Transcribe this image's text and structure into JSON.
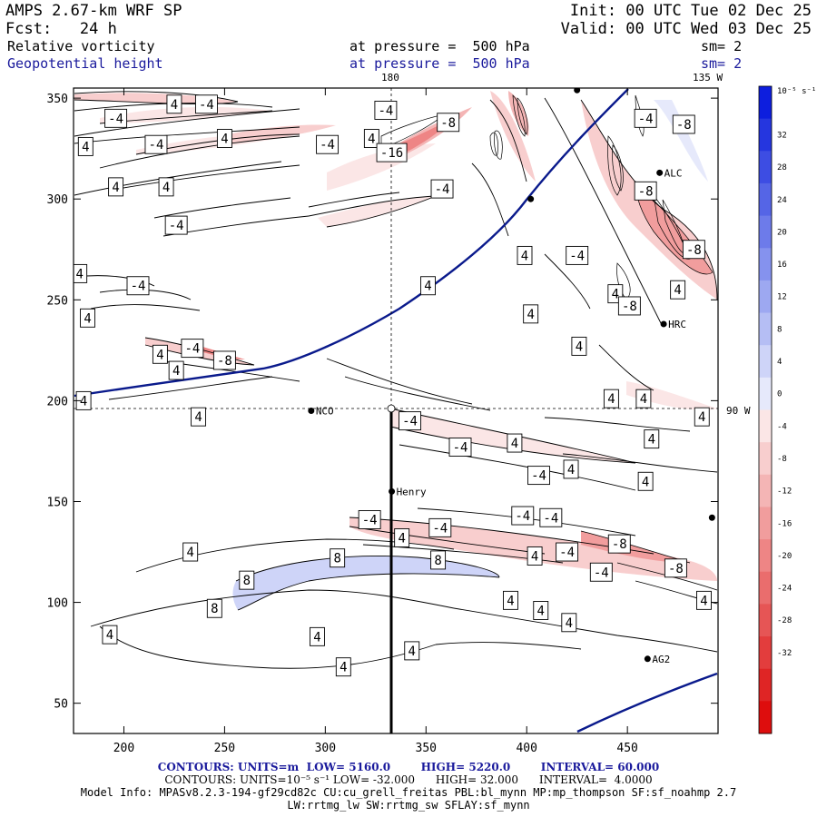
{
  "header": {
    "model": "AMPS 2.67-km WRF SP",
    "forecast_label": "Fcst:",
    "forecast_hours": "24 h",
    "init": "Init: 00 UTC Tue 02 Dec 25",
    "valid": "Valid: 00 UTC Wed 03 Dec 25",
    "field1": "Relative vorticity",
    "field2": "Geopotential height",
    "pressure1": "at pressure =  500 hPa",
    "pressure2": "at pressure =  500 hPa",
    "sm1": "sm= 2",
    "sm2": "sm= 2",
    "lon_top1": "180",
    "lon_top2": "135 W",
    "lon_right": "90 W"
  },
  "axes": {
    "x_ticks": [
      200,
      250,
      300,
      350,
      400,
      450
    ],
    "y_ticks": [
      50,
      100,
      150,
      200,
      250,
      300,
      350
    ],
    "xlim": [
      175,
      495
    ],
    "ylim": [
      35,
      355
    ]
  },
  "stations": [
    {
      "name": "NCO",
      "x": 293,
      "y": 195
    },
    {
      "name": "Henry",
      "x": 333,
      "y": 155
    },
    {
      "name": "HRC",
      "x": 468,
      "y": 238
    },
    {
      "name": "ALC",
      "x": 466,
      "y": 313
    },
    {
      "name": "AG2",
      "x": 460,
      "y": 72
    },
    {
      "name": "",
      "x": 402,
      "y": 300
    },
    {
      "name": "",
      "x": 492,
      "y": 142
    },
    {
      "name": "",
      "x": 425,
      "y": 354
    }
  ],
  "contour_labels": [
    {
      "text": "-4",
      "x": 196,
      "y": 340
    },
    {
      "text": "4",
      "x": 225,
      "y": 347
    },
    {
      "text": "-4",
      "x": 241,
      "y": 347
    },
    {
      "text": "4",
      "x": 181,
      "y": 326
    },
    {
      "text": "-4",
      "x": 216,
      "y": 327
    },
    {
      "text": "4",
      "x": 250,
      "y": 330
    },
    {
      "text": "4",
      "x": 196,
      "y": 306
    },
    {
      "text": "4",
      "x": 221,
      "y": 306
    },
    {
      "text": "-4",
      "x": 226,
      "y": 287
    },
    {
      "text": "-4",
      "x": 301,
      "y": 327
    },
    {
      "text": "4",
      "x": 323,
      "y": 330
    },
    {
      "text": "-4",
      "x": 330,
      "y": 344
    },
    {
      "text": "-8",
      "x": 361,
      "y": 338
    },
    {
      "text": "-16",
      "x": 333,
      "y": 323
    },
    {
      "text": "-4",
      "x": 358,
      "y": 305
    },
    {
      "text": "4",
      "x": 178,
      "y": 263
    },
    {
      "text": "-4",
      "x": 207,
      "y": 257
    },
    {
      "text": "4",
      "x": 182,
      "y": 241
    },
    {
      "text": "-4",
      "x": 234,
      "y": 226
    },
    {
      "text": "-8",
      "x": 250,
      "y": 220
    },
    {
      "text": "4",
      "x": 218,
      "y": 223
    },
    {
      "text": "4",
      "x": 226,
      "y": 215
    },
    {
      "text": "4",
      "x": 180,
      "y": 200
    },
    {
      "text": "4",
      "x": 237,
      "y": 192
    },
    {
      "text": "4",
      "x": 351,
      "y": 257
    },
    {
      "text": "4",
      "x": 399,
      "y": 272
    },
    {
      "text": "-4",
      "x": 425,
      "y": 272
    },
    {
      "text": "4",
      "x": 402,
      "y": 243
    },
    {
      "text": "4",
      "x": 444,
      "y": 253
    },
    {
      "text": "-8",
      "x": 451,
      "y": 247
    },
    {
      "text": "4",
      "x": 475,
      "y": 255
    },
    {
      "text": "-8",
      "x": 483,
      "y": 275
    },
    {
      "text": "-4",
      "x": 459,
      "y": 340
    },
    {
      "text": "-8",
      "x": 478,
      "y": 337
    },
    {
      "text": "-8",
      "x": 459,
      "y": 304
    },
    {
      "text": "4",
      "x": 426,
      "y": 227
    },
    {
      "text": "4",
      "x": 442,
      "y": 201
    },
    {
      "text": "4",
      "x": 458,
      "y": 201
    },
    {
      "text": "4",
      "x": 487,
      "y": 192
    },
    {
      "text": "-4",
      "x": 342,
      "y": 190
    },
    {
      "text": "-4",
      "x": 367,
      "y": 177
    },
    {
      "text": "4",
      "x": 394,
      "y": 179
    },
    {
      "text": "-4",
      "x": 406,
      "y": 163
    },
    {
      "text": "4",
      "x": 422,
      "y": 166
    },
    {
      "text": "4",
      "x": 462,
      "y": 181
    },
    {
      "text": "4",
      "x": 459,
      "y": 160
    },
    {
      "text": "-4",
      "x": 322,
      "y": 141
    },
    {
      "text": "-4",
      "x": 357,
      "y": 137
    },
    {
      "text": "4",
      "x": 338,
      "y": 132
    },
    {
      "text": "-4",
      "x": 398,
      "y": 143
    },
    {
      "text": "-4",
      "x": 412,
      "y": 142
    },
    {
      "text": "4",
      "x": 404,
      "y": 123
    },
    {
      "text": "-4",
      "x": 420,
      "y": 125
    },
    {
      "text": "-8",
      "x": 446,
      "y": 129
    },
    {
      "text": "-4",
      "x": 437,
      "y": 115
    },
    {
      "text": "-8",
      "x": 474,
      "y": 117
    },
    {
      "text": "4",
      "x": 488,
      "y": 101
    },
    {
      "text": "4",
      "x": 233,
      "y": 125
    },
    {
      "text": "8",
      "x": 306,
      "y": 122
    },
    {
      "text": "8",
      "x": 356,
      "y": 121
    },
    {
      "text": "8",
      "x": 261,
      "y": 111
    },
    {
      "text": "8",
      "x": 245,
      "y": 97
    },
    {
      "text": "4",
      "x": 392,
      "y": 101
    },
    {
      "text": "4",
      "x": 407,
      "y": 96
    },
    {
      "text": "4",
      "x": 421,
      "y": 90
    },
    {
      "text": "4",
      "x": 193,
      "y": 84
    },
    {
      "text": "4",
      "x": 296,
      "y": 83
    },
    {
      "text": "4",
      "x": 343,
      "y": 76
    },
    {
      "text": "4",
      "x": 309,
      "y": 68
    }
  ],
  "colorbar": {
    "unit": "10⁻⁵ s⁻¹",
    "labels": [
      32,
      28,
      24,
      20,
      16,
      12,
      8,
      4,
      0,
      -4,
      -8,
      -12,
      -16,
      -20,
      -24,
      -28,
      -32
    ],
    "colors": [
      "#0d1ede",
      "#2536df",
      "#3d4de3",
      "#5565e6",
      "#6d7bea",
      "#8592ee",
      "#9da8f1",
      "#b5bef4",
      "#ced4f8",
      "#e6e9fb",
      "#fbe6e6",
      "#f8cece",
      "#f4b5b5",
      "#f19d9d",
      "#ee8585",
      "#ea6d6d",
      "#e65555",
      "#e33d3d",
      "#df2525",
      "#de0d0d"
    ]
  },
  "footer": {
    "line1_left": "CONTOURS: UNITS=m",
    "line1_low": "LOW= 5160.0",
    "line1_high": "HIGH= 5220.0",
    "line1_interval": "INTERVAL= 60.000",
    "line2": "CONTOURS: UNITS=10⁻⁵ s⁻¹ LOW= -32.000      HIGH= 32.000      INTERVAL=  4.0000",
    "line3": "Model Info: MPASv8.2.3-194-gf29cd82c CU:cu_grell_freitas PBL:bl_mynn MP:mp_thompson SF:sf_noahmp 2.7",
    "line4": "LW:rrtmg_lw SW:rrtmg_sw SFLAY:sf_mynn"
  },
  "colors": {
    "height_contour": "#0a1a8c",
    "frame": "#000000"
  }
}
